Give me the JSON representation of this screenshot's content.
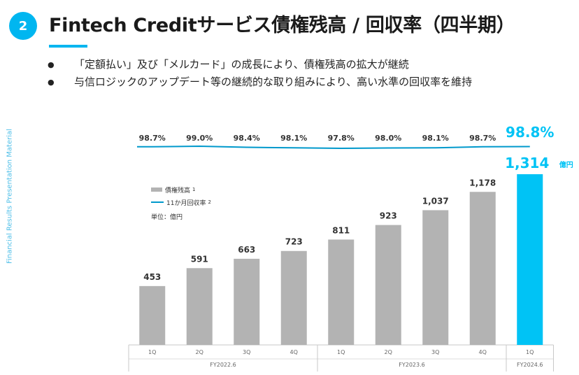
{
  "header": {
    "badge": "2",
    "title": "Fintech Creditサービス債権残高 / 回収率（四半期）"
  },
  "bullets": [
    "「定額払い」及び「メルカード」の成長により、債権残高の拡大が継続",
    "与信ロジックのアップデート等の継続的な取り組みにより、高い水準の回収率を維持"
  ],
  "side_label": "Financial Results Presentation Material",
  "legend": {
    "bar_label": "債権残高",
    "bar_note": "1",
    "line_label": "11か月回収率",
    "line_note": "2",
    "unit": "単位：億円"
  },
  "colors": {
    "bar": "#b3b3b3",
    "bar_highlight": "#00c3f5",
    "line": "#0099cc",
    "accent": "#00b6f0"
  },
  "chart_data": {
    "type": "bar",
    "categories": [
      "1Q",
      "2Q",
      "3Q",
      "4Q",
      "1Q",
      "2Q",
      "3Q",
      "4Q",
      "1Q"
    ],
    "groups": [
      {
        "label": "FY2022.6",
        "count": 4
      },
      {
        "label": "FY2023.6",
        "count": 4
      },
      {
        "label": "FY2024.6",
        "count": 1
      }
    ],
    "series": [
      {
        "name": "債権残高",
        "values": [
          453,
          591,
          663,
          723,
          811,
          923,
          1037,
          1178,
          1314
        ],
        "labels": [
          "453",
          "591",
          "663",
          "723",
          "811",
          "923",
          "1,037",
          "1,178",
          "1,314"
        ],
        "highlight_unit": "億円"
      },
      {
        "name": "11か月回収率",
        "values": [
          98.7,
          99.0,
          98.4,
          98.1,
          97.8,
          98.0,
          98.1,
          98.7,
          98.8
        ],
        "labels": [
          "98.7%",
          "99.0%",
          "98.4%",
          "98.1%",
          "97.8%",
          "98.0%",
          "98.1%",
          "98.7%",
          "98.8%"
        ]
      }
    ],
    "highlight_index": 8
  }
}
